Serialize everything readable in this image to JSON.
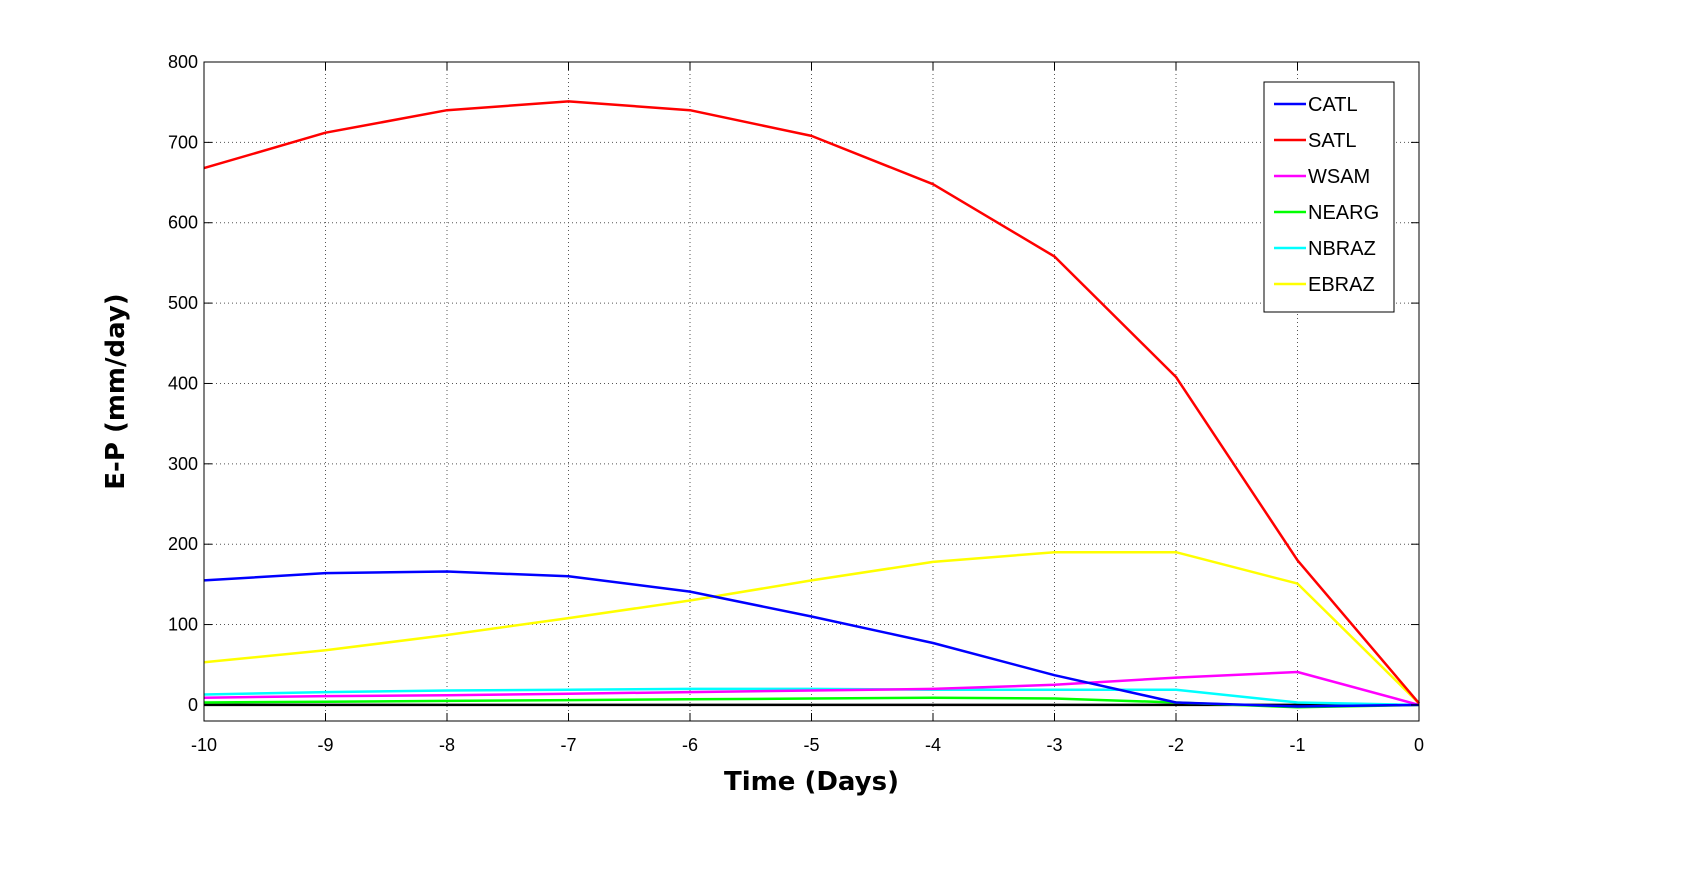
{
  "chart_data": {
    "type": "line",
    "title": "",
    "xlabel": "Time (Days)",
    "ylabel": "E-P (mm/day)",
    "x": [
      -10,
      -9,
      -8,
      -7,
      -6,
      -5,
      -4,
      -3,
      -2,
      -1,
      0
    ],
    "xlim": [
      -10,
      0
    ],
    "ylim": [
      -20,
      800
    ],
    "xticks": [
      -10,
      -9,
      -8,
      -7,
      -6,
      -5,
      -4,
      -3,
      -2,
      -1,
      0
    ],
    "yticks": [
      0,
      100,
      200,
      300,
      400,
      500,
      600,
      700,
      800
    ],
    "grid": true,
    "legend_position": "top-right",
    "series": [
      {
        "name": "CATL",
        "color": "#0000ff",
        "values": [
          155,
          164,
          166,
          160,
          141,
          110,
          77,
          37,
          3,
          -2,
          0
        ]
      },
      {
        "name": "SATL",
        "color": "#ff0000",
        "values": [
          668,
          712,
          740,
          751,
          740,
          708,
          648,
          558,
          408,
          180,
          2
        ]
      },
      {
        "name": "WSAM",
        "color": "#ff00ff",
        "values": [
          9,
          11,
          12,
          14,
          16,
          18,
          20,
          25,
          34,
          41,
          0
        ]
      },
      {
        "name": "NEARG",
        "color": "#00ff00",
        "values": [
          3,
          4,
          5,
          6,
          7,
          8,
          9,
          8,
          3,
          -3,
          0
        ]
      },
      {
        "name": "NBRAZ",
        "color": "#00ffff",
        "values": [
          13,
          16,
          18,
          19,
          20,
          20,
          19,
          19,
          19,
          3,
          0
        ]
      },
      {
        "name": "EBRAZ",
        "color": "#ffff00",
        "values": [
          53,
          68,
          87,
          108,
          130,
          155,
          178,
          190,
          190,
          151,
          2
        ]
      },
      {
        "color": "#000000",
        "values": [
          0,
          0,
          0,
          0,
          0,
          0,
          0,
          0,
          0,
          0,
          0
        ]
      }
    ]
  }
}
